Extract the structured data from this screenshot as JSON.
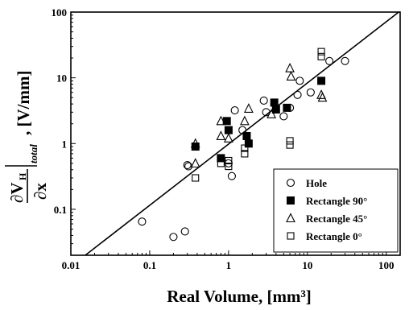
{
  "chart_data": {
    "type": "scatter",
    "xlabel": "Real Volume, [mm³]",
    "ylabel": {
      "numerator": "∂V",
      "numerator_sub": "H",
      "denominator": "∂x",
      "subscript": "total",
      "unit": ", [V/mm]"
    },
    "x_scale": "log",
    "y_scale": "log",
    "xlim": [
      0.01,
      150
    ],
    "ylim": [
      0.02,
      100
    ],
    "x_ticks": [
      0.01,
      0.1,
      1,
      10,
      100
    ],
    "x_tick_labels": [
      "0.01",
      "0.1",
      "1",
      "10",
      "100"
    ],
    "y_ticks": [
      0.1,
      1,
      10,
      100
    ],
    "y_tick_labels": [
      "0.1",
      "1",
      "10",
      "100"
    ],
    "grid": false,
    "legend_position": "bottom-right",
    "fit_line": {
      "x": [
        0.01,
        150
      ],
      "y": [
        0.0135,
        104
      ]
    },
    "series": [
      {
        "name": "Hole",
        "marker": "circle-open",
        "points": [
          {
            "x": 0.08,
            "y": 0.065
          },
          {
            "x": 0.2,
            "y": 0.038
          },
          {
            "x": 0.28,
            "y": 0.046
          },
          {
            "x": 0.3,
            "y": 0.47
          },
          {
            "x": 0.31,
            "y": 0.45
          },
          {
            "x": 1.0,
            "y": 0.5
          },
          {
            "x": 1.1,
            "y": 0.32
          },
          {
            "x": 1.2,
            "y": 3.2
          },
          {
            "x": 1.5,
            "y": 1.6
          },
          {
            "x": 2.8,
            "y": 4.5
          },
          {
            "x": 3.0,
            "y": 3.0
          },
          {
            "x": 5.0,
            "y": 2.6
          },
          {
            "x": 6.0,
            "y": 3.5
          },
          {
            "x": 7.5,
            "y": 5.5
          },
          {
            "x": 8.0,
            "y": 9.0
          },
          {
            "x": 11.0,
            "y": 6.0
          },
          {
            "x": 19.0,
            "y": 18.0
          },
          {
            "x": 30.0,
            "y": 18.0
          }
        ]
      },
      {
        "name": "Rectangle 90°",
        "marker": "square-filled",
        "points": [
          {
            "x": 0.38,
            "y": 0.9
          },
          {
            "x": 0.8,
            "y": 0.6
          },
          {
            "x": 0.95,
            "y": 2.2
          },
          {
            "x": 1.0,
            "y": 1.6
          },
          {
            "x": 1.7,
            "y": 1.3
          },
          {
            "x": 1.8,
            "y": 1.0
          },
          {
            "x": 3.8,
            "y": 4.2
          },
          {
            "x": 4.0,
            "y": 3.3
          },
          {
            "x": 5.5,
            "y": 3.5
          },
          {
            "x": 15.0,
            "y": 9.0
          }
        ]
      },
      {
        "name": "Rectangle 45°",
        "marker": "triangle-open",
        "points": [
          {
            "x": 0.38,
            "y": 1.0
          },
          {
            "x": 0.38,
            "y": 0.5
          },
          {
            "x": 0.8,
            "y": 2.2
          },
          {
            "x": 0.8,
            "y": 1.3
          },
          {
            "x": 1.0,
            "y": 1.2
          },
          {
            "x": 1.6,
            "y": 2.2
          },
          {
            "x": 1.8,
            "y": 3.4
          },
          {
            "x": 3.5,
            "y": 2.8
          },
          {
            "x": 6.0,
            "y": 14.0
          },
          {
            "x": 6.2,
            "y": 10.5
          },
          {
            "x": 15.0,
            "y": 5.5
          },
          {
            "x": 15.5,
            "y": 5.0
          }
        ]
      },
      {
        "name": "Rectangle 0°",
        "marker": "square-open",
        "points": [
          {
            "x": 0.38,
            "y": 0.3
          },
          {
            "x": 0.8,
            "y": 0.5
          },
          {
            "x": 1.0,
            "y": 0.45
          },
          {
            "x": 1.0,
            "y": 0.55
          },
          {
            "x": 1.6,
            "y": 0.7
          },
          {
            "x": 1.6,
            "y": 0.85
          },
          {
            "x": 6.0,
            "y": 1.1
          },
          {
            "x": 6.0,
            "y": 0.95
          },
          {
            "x": 15.0,
            "y": 21.0
          },
          {
            "x": 15.0,
            "y": 25.0
          }
        ]
      }
    ]
  }
}
